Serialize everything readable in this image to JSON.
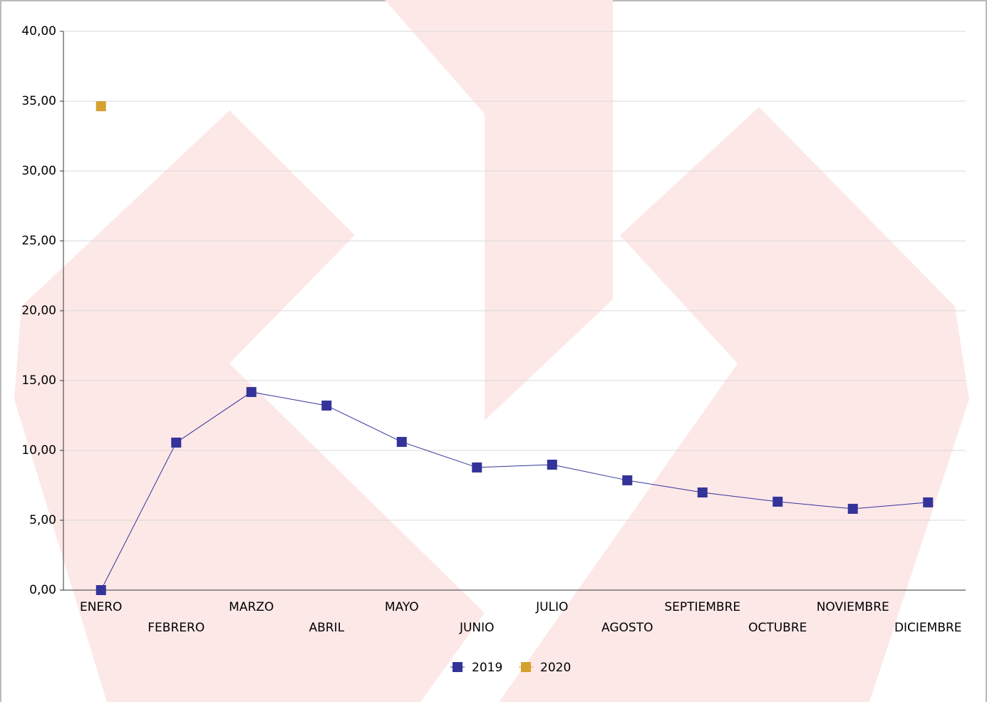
{
  "chart_data": {
    "type": "line",
    "categories": [
      "ENERO",
      "FEBRERO",
      "MARZO",
      "ABRIL",
      "MAYO",
      "JUNIO",
      "JULIO",
      "AGOSTO",
      "SEPTIEMBRE",
      "OCTUBRE",
      "NOVIEMBRE",
      "DICIEMBRE"
    ],
    "series": [
      {
        "name": "2019",
        "color": "#333399",
        "values": [
          0,
          10.56,
          14.18,
          13.21,
          10.61,
          8.78,
          8.98,
          7.86,
          6.99,
          6.33,
          5.82,
          6.28
        ]
      },
      {
        "name": "2020",
        "color": "#d4a030",
        "values": [
          34.64,
          null,
          null,
          null,
          null,
          null,
          null,
          null,
          null,
          null,
          null,
          null
        ]
      }
    ],
    "ylim": [
      0,
      40
    ],
    "yticks": [
      {
        "value": 0,
        "label": "0,00"
      },
      {
        "value": 5,
        "label": "5,00"
      },
      {
        "value": 10,
        "label": "10,00"
      },
      {
        "value": 15,
        "label": "15,00"
      },
      {
        "value": 20,
        "label": "20,00"
      },
      {
        "value": 25,
        "label": "25,00"
      },
      {
        "value": 30,
        "label": "30,00"
      },
      {
        "value": 35,
        "label": "35,00"
      },
      {
        "value": 40,
        "label": "40,00"
      }
    ],
    "grid": true,
    "legend": "bottom"
  }
}
